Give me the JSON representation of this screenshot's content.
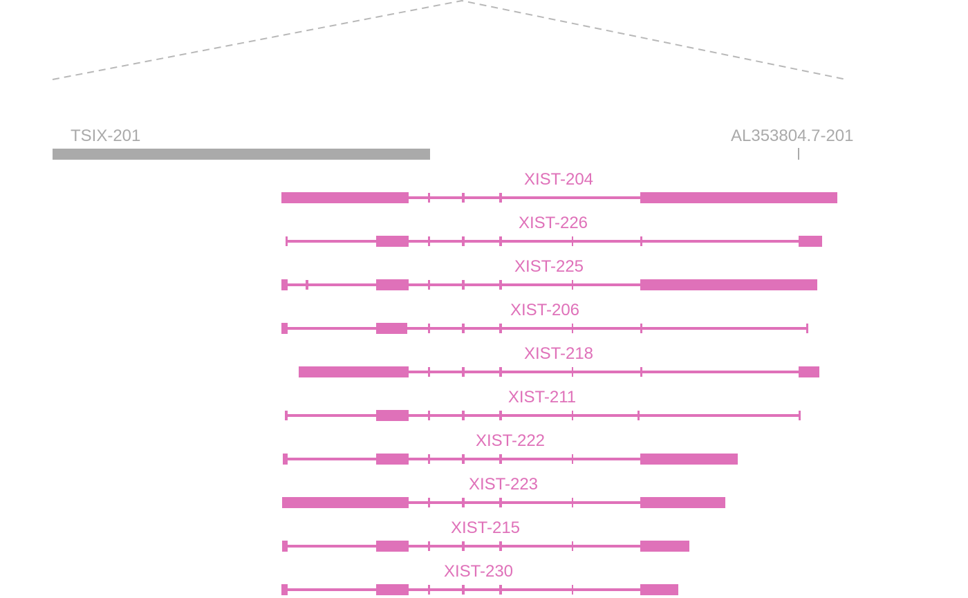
{
  "colors": {
    "transcript": "#df71b9",
    "context_gene": "#aaaaaa",
    "zoom_guide": "#b8b8b8"
  },
  "context_genes": [
    {
      "label": "TSIX-201"
    },
    {
      "label": "AL353804.7-201"
    }
  ],
  "transcripts": [
    {
      "label": "XIST-204"
    },
    {
      "label": "XIST-226"
    },
    {
      "label": "XIST-225"
    },
    {
      "label": "XIST-206"
    },
    {
      "label": "XIST-218"
    },
    {
      "label": "XIST-211"
    },
    {
      "label": "XIST-222"
    },
    {
      "label": "XIST-223"
    },
    {
      "label": "XIST-215"
    },
    {
      "label": "XIST-230"
    }
  ]
}
